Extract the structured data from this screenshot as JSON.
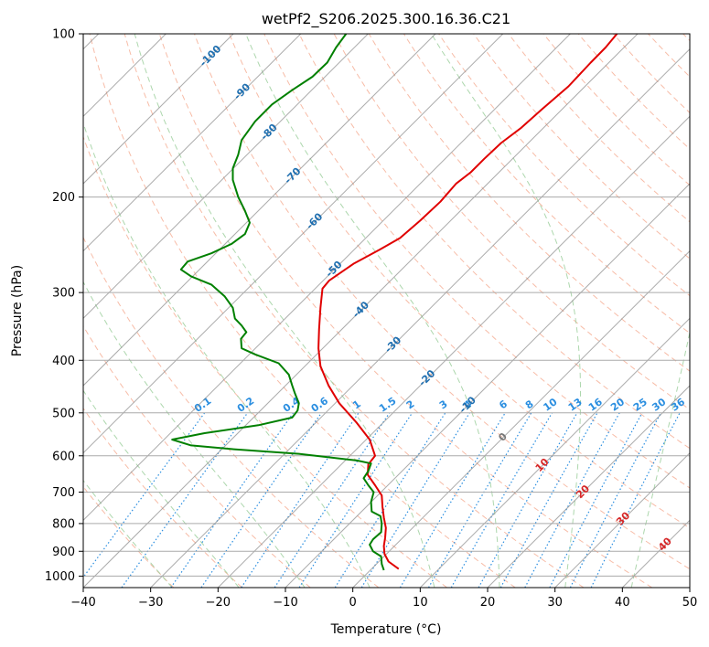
{
  "chart_data": {
    "type": "line",
    "title": "wetPf2_S206.2025.300.16.36.C21",
    "xlabel": "Temperature (°C)",
    "ylabel": "Pressure (hPa)",
    "xlim": [
      -40,
      50
    ],
    "ylim": [
      1050,
      100
    ],
    "y_scale": "log",
    "grid": true,
    "x_ticks": [
      -40,
      -30,
      -20,
      -10,
      0,
      10,
      20,
      30,
      40,
      50
    ],
    "y_ticks": [
      100,
      200,
      300,
      400,
      500,
      600,
      700,
      800,
      900,
      1000
    ],
    "series": [
      {
        "color": "#e00000",
        "points": [
          [
            6.8,
            970
          ],
          [
            5.3,
            940
          ],
          [
            4.7,
            910
          ],
          [
            4.6,
            880
          ],
          [
            4.8,
            850
          ],
          [
            4.9,
            815
          ],
          [
            4.6,
            780
          ],
          [
            4.4,
            745
          ],
          [
            4.3,
            710
          ],
          [
            3.3,
            680
          ],
          [
            2.2,
            650
          ],
          [
            2.3,
            622
          ],
          [
            3.3,
            600
          ],
          [
            2.5,
            560
          ],
          [
            0.5,
            520
          ],
          [
            -2.0,
            480
          ],
          [
            -3.6,
            445
          ],
          [
            -4.8,
            410
          ],
          [
            -5.1,
            380
          ],
          [
            -5.0,
            350
          ],
          [
            -4.8,
            320
          ],
          [
            -4.5,
            295
          ],
          [
            -3.5,
            285
          ],
          [
            0.2,
            265
          ],
          [
            4.0,
            250
          ],
          [
            7.0,
            238
          ],
          [
            10.0,
            221
          ],
          [
            13.0,
            204
          ],
          [
            15.3,
            189
          ],
          [
            17.5,
            180
          ],
          [
            19.5,
            170
          ],
          [
            22.0,
            159
          ],
          [
            25.0,
            149
          ],
          [
            28.0,
            138
          ],
          [
            32.0,
            125
          ],
          [
            35.3,
            113
          ],
          [
            37.5,
            106
          ],
          [
            39.2,
            100
          ]
        ]
      },
      {
        "color": "#008000",
        "points": [
          [
            4.6,
            975
          ],
          [
            4.3,
            950
          ],
          [
            4.2,
            920
          ],
          [
            3.0,
            900
          ],
          [
            2.5,
            875
          ],
          [
            3.0,
            855
          ],
          [
            4.2,
            830
          ],
          [
            4.3,
            800
          ],
          [
            4.1,
            775
          ],
          [
            2.8,
            760
          ],
          [
            2.7,
            730
          ],
          [
            3.1,
            700
          ],
          [
            2.3,
            680
          ],
          [
            1.6,
            660
          ],
          [
            2.3,
            640
          ],
          [
            2.7,
            620
          ],
          [
            0.6,
            612
          ],
          [
            -8.0,
            595
          ],
          [
            -18.0,
            583
          ],
          [
            -24.0,
            574
          ],
          [
            -26.8,
            560
          ],
          [
            -22.0,
            545
          ],
          [
            -14.0,
            527
          ],
          [
            -9.0,
            510
          ],
          [
            -8.2,
            495
          ],
          [
            -8.0,
            480
          ],
          [
            -8.6,
            460
          ],
          [
            -9.0,
            445
          ],
          [
            -9.5,
            425
          ],
          [
            -11.0,
            405
          ],
          [
            -14.5,
            390
          ],
          [
            -16.5,
            380
          ],
          [
            -16.6,
            365
          ],
          [
            -15.8,
            355
          ],
          [
            -16.5,
            345
          ],
          [
            -17.5,
            335
          ],
          [
            -17.8,
            320
          ],
          [
            -19.0,
            305
          ],
          [
            -21.0,
            290
          ],
          [
            -24.0,
            280
          ],
          [
            -25.5,
            272
          ],
          [
            -24.5,
            263
          ],
          [
            -21.0,
            254
          ],
          [
            -18.0,
            244
          ],
          [
            -16.0,
            234
          ],
          [
            -15.3,
            223
          ],
          [
            -16.0,
            212
          ],
          [
            -17.0,
            200
          ],
          [
            -17.8,
            186
          ],
          [
            -17.8,
            177
          ],
          [
            -17.0,
            167
          ],
          [
            -16.5,
            157
          ],
          [
            -14.5,
            145
          ],
          [
            -12.0,
            135
          ],
          [
            -9.0,
            127
          ],
          [
            -6.0,
            120
          ],
          [
            -3.8,
            113
          ],
          [
            -2.5,
            106
          ],
          [
            -1.0,
            100
          ]
        ]
      }
    ],
    "dry_adiabats_c": [
      -30,
      -20,
      -10,
      0,
      10,
      20,
      30,
      40,
      50,
      60,
      70,
      80,
      90,
      100,
      110,
      120,
      130,
      140,
      150,
      160,
      170,
      180,
      190,
      200
    ],
    "moist_adiabats_c": [
      -30,
      -20,
      -10,
      0,
      10,
      20,
      30,
      40
    ],
    "mixing_ratios": [
      0.1,
      0.2,
      0.4,
      0.6,
      1,
      1.5,
      2,
      3,
      4,
      6,
      8,
      10,
      13,
      16,
      20,
      25,
      30,
      36
    ],
    "mixing_ratio_labels": [
      "0.1",
      "0.2",
      "0.4",
      "0.6",
      "1",
      "1.5",
      "2",
      "3",
      "4",
      "6",
      "8",
      "10",
      "13",
      "16",
      "20",
      "25",
      "30",
      "36"
    ],
    "isotherm_labels": [
      {
        "text": "-100",
        "t": -100,
        "p": 110
      },
      {
        "text": "-90",
        "t": -90,
        "p": 128
      },
      {
        "text": "-80",
        "t": -80,
        "p": 152
      },
      {
        "text": "-70",
        "t": -70,
        "p": 183
      },
      {
        "text": "-60",
        "t": -60,
        "p": 222
      },
      {
        "text": "-50",
        "t": -50,
        "p": 272
      },
      {
        "text": "-40",
        "t": -40,
        "p": 323
      },
      {
        "text": "-30",
        "t": -30,
        "p": 375
      },
      {
        "text": "-20",
        "t": -20,
        "p": 432
      },
      {
        "text": "-10",
        "t": -10,
        "p": 484
      },
      {
        "text": "0",
        "t": 0,
        "p": 555
      },
      {
        "text": "10",
        "t": 10,
        "p": 625
      },
      {
        "text": "20",
        "t": 20,
        "p": 700
      },
      {
        "text": "30",
        "t": 30,
        "p": 785
      },
      {
        "text": "40",
        "t": 40,
        "p": 875
      }
    ],
    "colors": {
      "temperature": "#e00000",
      "dewpoint": "#008000",
      "isotherm_cold": "#1f6fb0",
      "isotherm_zero": "#777777",
      "isotherm_warm": "#d62728",
      "mixing_ratio": "#2a8ee0",
      "dry_adiabat": "#f4a58a",
      "moist_adiabat": "#9fd09f",
      "skew_grid": "#888888"
    }
  }
}
